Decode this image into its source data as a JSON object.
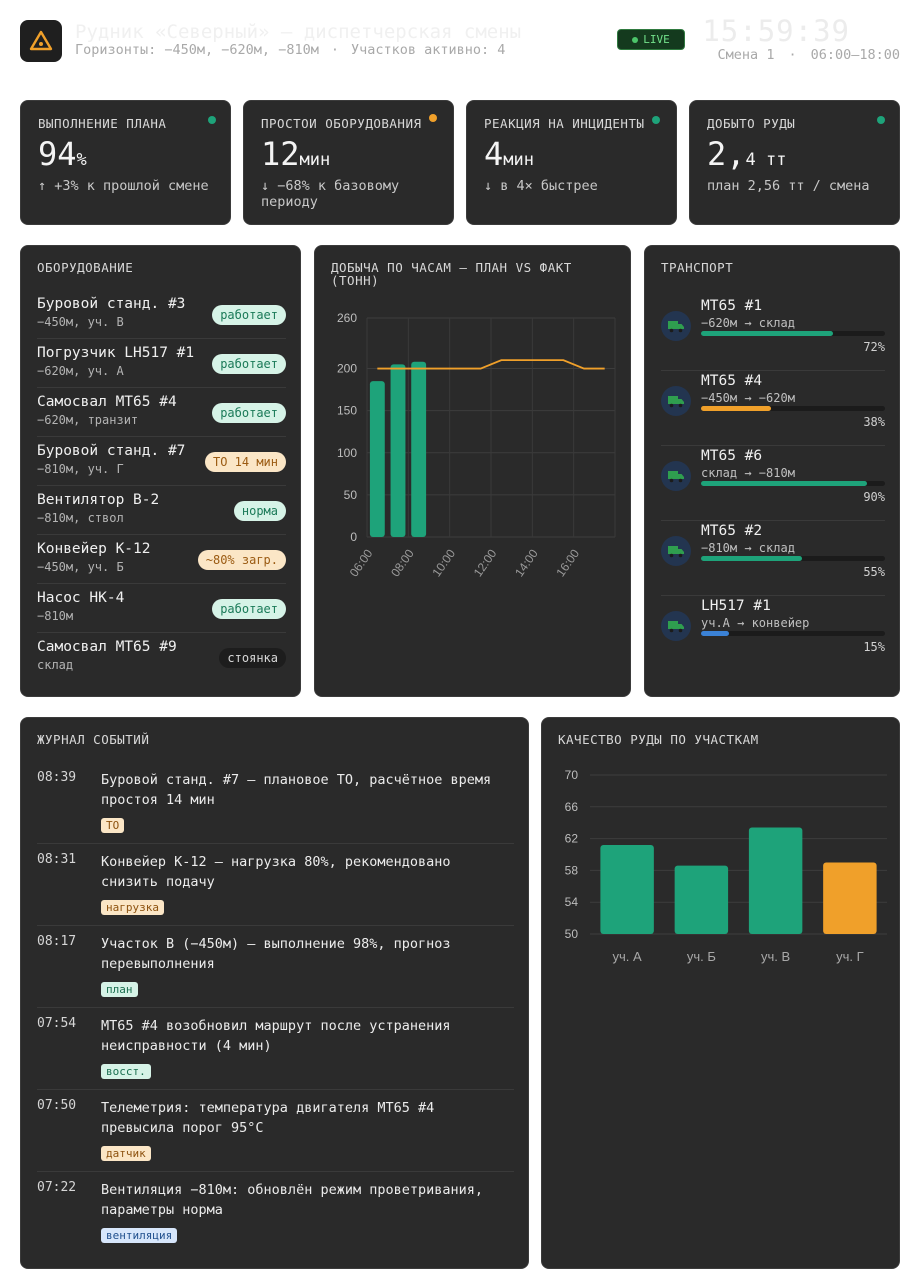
{
  "header": {
    "title": "Рудник «Северный» — диспетчерская смены",
    "horizons": "Горизонты: −450м, −620м, −810м",
    "sections": "Участков активно: 4",
    "live": "LIVE",
    "clock": "15:59:39",
    "shift": "Смена 1",
    "shift_time": "06:00–18:00"
  },
  "kpis": [
    {
      "label": "ВЫПОЛНЕНИЕ ПЛАНА",
      "value": "94",
      "unit": "%",
      "note": "↑ +3% к прошлой смене",
      "dot": "#1ea37a"
    },
    {
      "label": "ПРОСТОИ ОБОРУДОВАНИЯ",
      "value": "12",
      "unit": "мин",
      "note": "↓ −68% к базовому периоду",
      "dot": "#f0a02a"
    },
    {
      "label": "РЕАКЦИЯ НА ИНЦИДЕНТЫ",
      "value": "4",
      "unit": "мин",
      "note": "↓ в 4× быстрее",
      "dot": "#1ea37a"
    },
    {
      "label": "ДОБЫТО РУДЫ",
      "value": "2,",
      "unit": "4 тт",
      "note": "план 2,56 тт / смена",
      "dot": "#1ea37a"
    }
  ],
  "equipment": {
    "title": "ОБОРУДОВАНИЕ",
    "items": [
      {
        "name": "Буровой станд. #3",
        "loc": "−450м, уч. В",
        "status": "работает",
        "kind": "ok"
      },
      {
        "name": "Погрузчик LH517 #1",
        "loc": "−620м, уч. А",
        "status": "работает",
        "kind": "ok"
      },
      {
        "name": "Самосвал МТ65 #4",
        "loc": "−620м, транзит",
        "status": "работает",
        "kind": "ok"
      },
      {
        "name": "Буровой станд. #7",
        "loc": "−810м, уч. Г",
        "status": "ТО 14 мин",
        "kind": "warn"
      },
      {
        "name": "Вентилятор В-2",
        "loc": "−810м, ствол",
        "status": "норма",
        "kind": "ok"
      },
      {
        "name": "Конвейер К-12",
        "loc": "−450м, уч. Б",
        "status": "~80% загр.",
        "kind": "warn"
      },
      {
        "name": "Насос НК-4",
        "loc": "−810м",
        "status": "работает",
        "kind": "ok"
      },
      {
        "name": "Самосвал МТ65 #9",
        "loc": "склад",
        "status": "стоянка",
        "kind": "dark"
      }
    ]
  },
  "production": {
    "title": "ДОБЫЧА ПО ЧАСАМ — ПЛАН VS ФАКТ (ТОНН)",
    "chart_data": {
      "type": "bar",
      "x": [
        "06:00",
        "07:00",
        "08:00",
        "09:00",
        "10:00",
        "11:00",
        "12:00",
        "13:00",
        "14:00",
        "15:00",
        "16:00",
        "17:00"
      ],
      "xticks": [
        "06:00",
        "08:00",
        "10:00",
        "12:00",
        "14:00",
        "16:00"
      ],
      "series": [
        {
          "type": "bar",
          "values": [
            185,
            205,
            208,
            null,
            null,
            null,
            null,
            null,
            null,
            null,
            null,
            null
          ],
          "color": "#1ea37a"
        },
        {
          "type": "line",
          "values": [
            200,
            200,
            200,
            200,
            200,
            200,
            210,
            210,
            210,
            210,
            200,
            200
          ],
          "color": "#f0a02a"
        }
      ],
      "ylim": [
        0,
        260
      ],
      "yticks": [
        0,
        50,
        100,
        150,
        200,
        260
      ],
      "grid": true
    }
  },
  "transport": {
    "title": "ТРАНСПОРТ",
    "items": [
      {
        "name": "МТ65 #1",
        "route": "−620м → склад",
        "pct": 72,
        "pct_label": "72%",
        "color": "#1ea37a"
      },
      {
        "name": "МТ65 #4",
        "route": "−450м → −620м",
        "pct": 38,
        "pct_label": "38%",
        "color": "#f0a02a"
      },
      {
        "name": "МТ65 #6",
        "route": "склад → −810м",
        "pct": 90,
        "pct_label": "90%",
        "color": "#1ea37a"
      },
      {
        "name": "МТ65 #2",
        "route": "−810м → склад",
        "pct": 55,
        "pct_label": "55%",
        "color": "#1ea37a"
      },
      {
        "name": "LH517 #1",
        "route": "уч.А → конвейер",
        "pct": 15,
        "pct_label": "15%",
        "color": "#3b82d6"
      }
    ]
  },
  "journal": {
    "title": "ЖУРНАЛ СОБЫТИЙ",
    "items": [
      {
        "time": "08:39",
        "text": "Буровой станд. #7 — плановое ТО, расчётное время простоя 14 мин",
        "tag": "ТО",
        "tag_kind": "orange"
      },
      {
        "time": "08:31",
        "text": "Конвейер К-12 — нагрузка 80%, рекомендовано снизить подачу",
        "tag": "нагрузка",
        "tag_kind": "orange"
      },
      {
        "time": "08:17",
        "text": "Участок В (−450м) — выполнение 98%, прогноз перевыполнения",
        "tag": "план",
        "tag_kind": "green"
      },
      {
        "time": "07:54",
        "text": "МТ65 #4 возобновил маршрут после устранения неисправности (4 мин)",
        "tag": "восст.",
        "tag_kind": "green"
      },
      {
        "time": "07:50",
        "text": "Телеметрия: температура двигателя МТ65 #4 превысила порог 95°С",
        "tag": "датчик",
        "tag_kind": "orange"
      },
      {
        "time": "07:22",
        "text": "Вентиляция −810м: обновлён режим проветривания, параметры норма",
        "tag": "вентиляция",
        "tag_kind": "blue"
      }
    ]
  },
  "quality": {
    "title": "КАЧЕСТВО РУДЫ ПО УЧАСТКАМ",
    "chart_data": {
      "type": "bar",
      "categories": [
        "уч. А",
        "уч. Б",
        "уч. В",
        "уч. Г"
      ],
      "values": [
        61.2,
        58.6,
        63.4,
        59.0
      ],
      "colors": [
        "#1ea37a",
        "#1ea37a",
        "#1ea37a",
        "#f0a02a"
      ],
      "ylim": [
        50,
        70
      ],
      "yticks": [
        50,
        54,
        58,
        62,
        66,
        70
      ],
      "grid": true
    }
  }
}
